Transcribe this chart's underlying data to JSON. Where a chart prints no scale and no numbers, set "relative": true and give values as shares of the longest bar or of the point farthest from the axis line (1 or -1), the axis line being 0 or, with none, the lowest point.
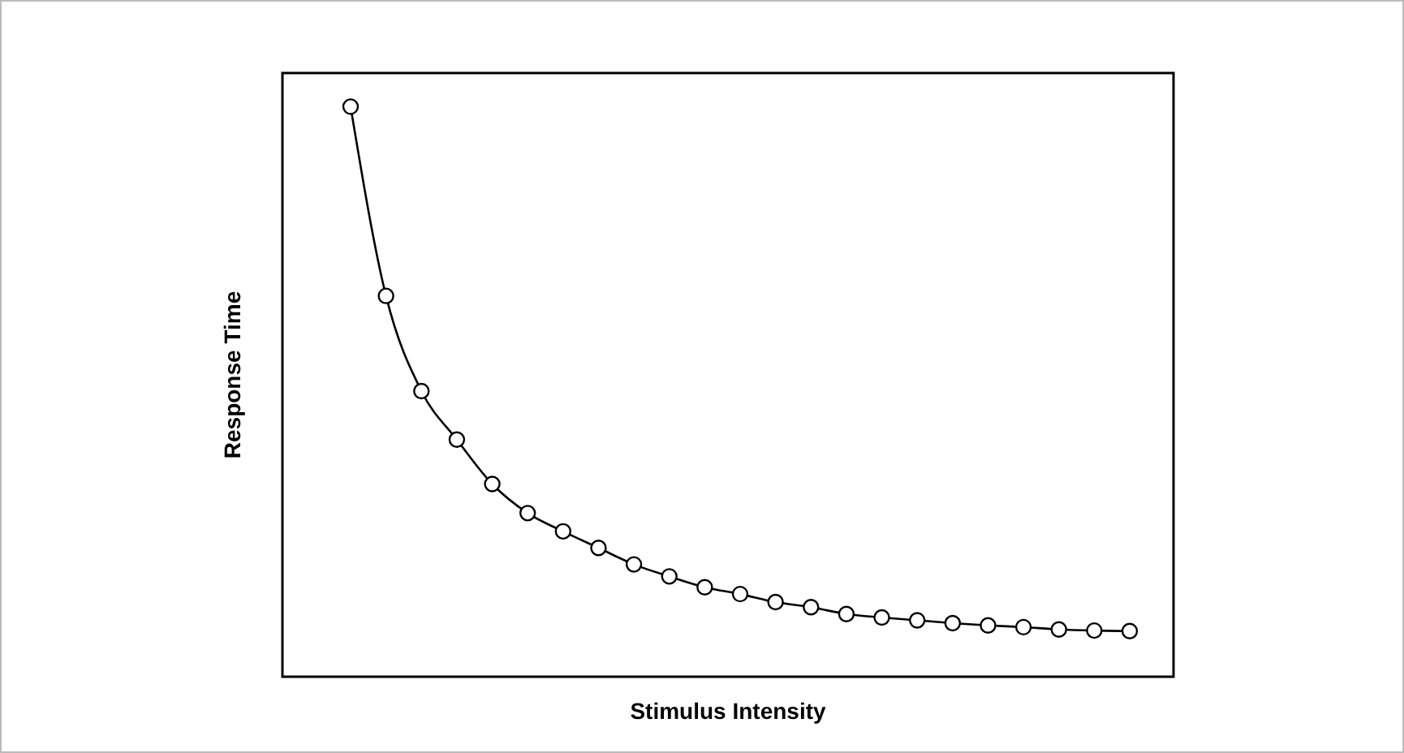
{
  "chart_data": {
    "type": "line",
    "xlabel": "Stimulus Intensity",
    "ylabel": "Response Time",
    "relative": true,
    "marker": "circle",
    "line_style": "solid",
    "categories": [
      null,
      null,
      null,
      null,
      null,
      null,
      null,
      null,
      null,
      null,
      null,
      null,
      null,
      null,
      null,
      null,
      null,
      null,
      null,
      null,
      null,
      null,
      null
    ],
    "series": [
      {
        "color": "#000000",
        "values": [
          1,
          0.668,
          0.501,
          0.416,
          0.338,
          0.287,
          0.255,
          0.226,
          0.197,
          0.176,
          0.157,
          0.145,
          0.131,
          0.122,
          0.11,
          0.104,
          0.099,
          0.094,
          0.09,
          0.087,
          0.083,
          0.081,
          0.08
        ]
      }
    ]
  }
}
